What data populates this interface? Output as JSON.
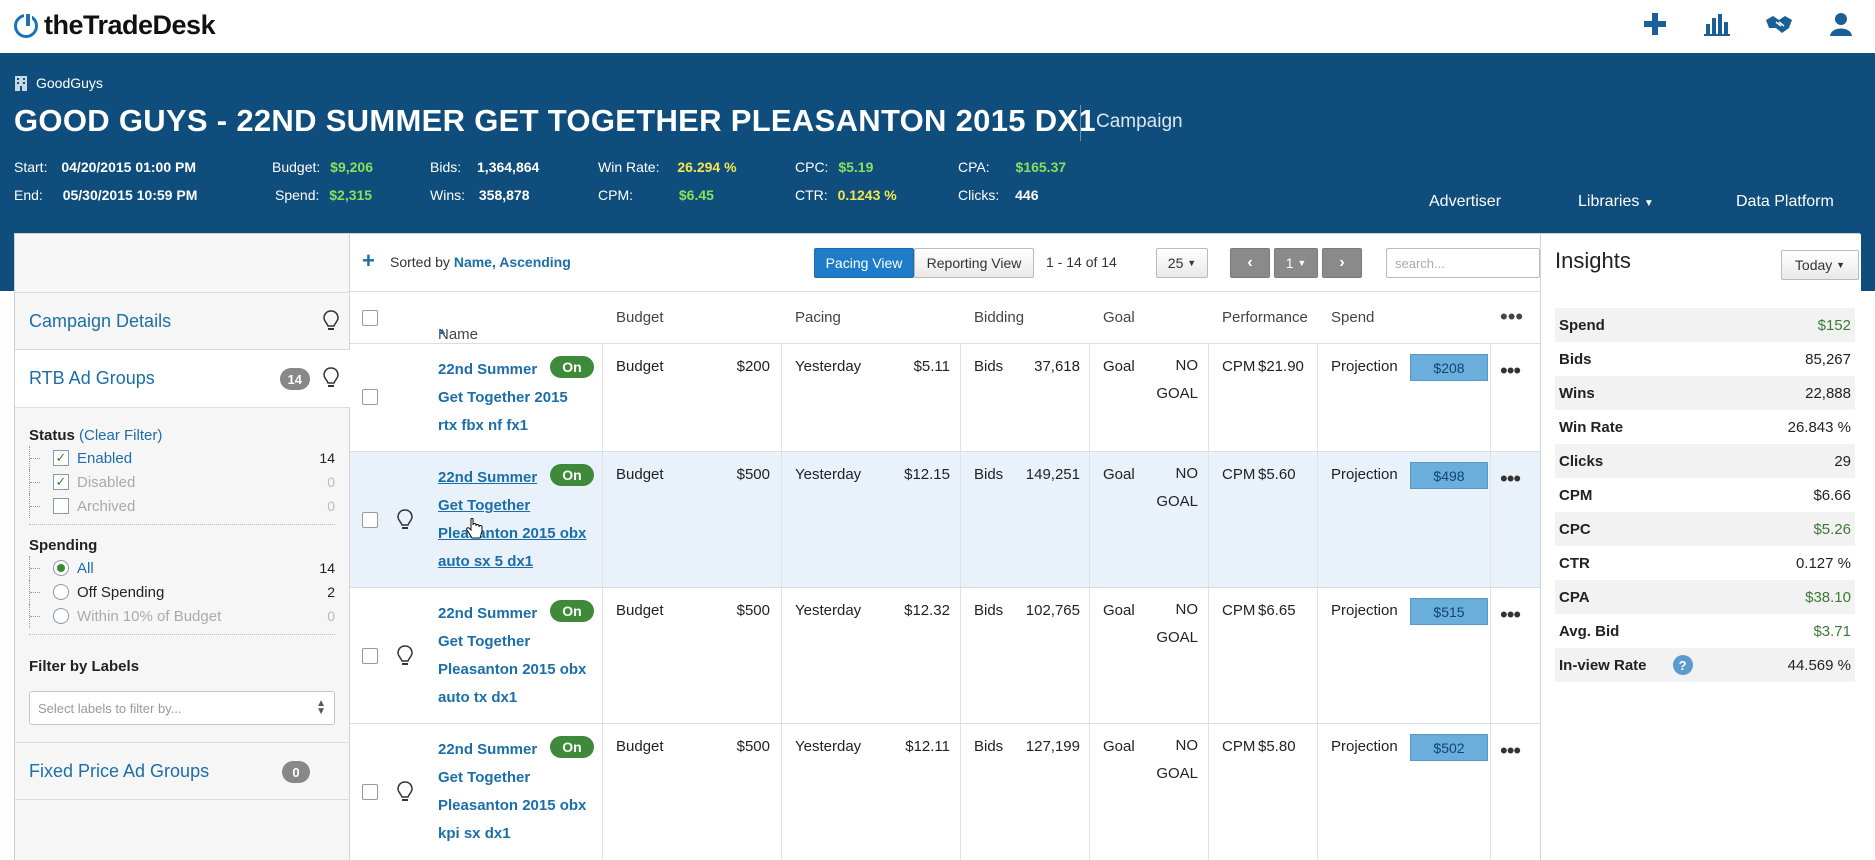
{
  "brand": {
    "logo_text": "theTradeDesk"
  },
  "topnav": {
    "icons": [
      "plus-icon",
      "bar-chart-icon",
      "handshake-icon",
      "user-icon"
    ]
  },
  "header": {
    "advertiser": "GoodGuys",
    "campaign_title": "GOOD GUYS - 22ND SUMMER GET TOGETHER PLEASANTON 2015 DX1",
    "campaign_type": "Campaign",
    "start_label": "Start:",
    "start_value": "04/20/2015 01:00 PM",
    "end_label": "End:",
    "end_value": "05/30/2015 10:59 PM",
    "budget_label": "Budget:",
    "budget_value": "$9,206",
    "spend_label": "Spend:",
    "spend_value": "$2,315",
    "bids_label": "Bids:",
    "bids_value": "1,364,864",
    "wins_label": "Wins:",
    "wins_value": "358,878",
    "winrate_label": "Win Rate:",
    "winrate_value": "26.294 %",
    "cpm_label": "CPM:",
    "cpm_value": "$6.45",
    "cpc_label": "CPC:",
    "cpc_value": "$5.19",
    "ctr_label": "CTR:",
    "ctr_value": "0.1243 %",
    "cpa_label": "CPA:",
    "cpa_value": "$165.37",
    "clicks_label": "Clicks:",
    "clicks_value": "446",
    "nav": [
      "Advertiser",
      "Libraries",
      "Data Platform"
    ]
  },
  "sidebar": {
    "campaign_details": "Campaign Details",
    "rtb_ad_groups": "RTB Ad Groups",
    "rtb_count": "14",
    "status_title": "Status",
    "clear_filter": "(Clear Filter)",
    "status_options": [
      {
        "label": "Enabled",
        "count": "14",
        "checked": true
      },
      {
        "label": "Disabled",
        "count": "0",
        "checked": true
      },
      {
        "label": "Archived",
        "count": "0",
        "checked": false
      }
    ],
    "spending_title": "Spending",
    "spending_options": [
      {
        "label": "All",
        "count": "14",
        "selected": true
      },
      {
        "label": "Off Spending",
        "count": "2",
        "selected": false
      },
      {
        "label": "Within 10% of Budget",
        "count": "0",
        "selected": false
      }
    ],
    "filter_labels_title": "Filter by Labels",
    "filter_labels_placeholder": "Select labels to filter by...",
    "fixed_price": "Fixed Price Ad Groups",
    "fixed_count": "0"
  },
  "toolbar": {
    "sorted_by_label": "Sorted by",
    "sorted_by_value": "Name, Ascending",
    "pacing_view": "Pacing View",
    "reporting_view": "Reporting View",
    "range": "1 - 14 of 14",
    "page_size": "25",
    "page": "1",
    "search_placeholder": "search..."
  },
  "columns": [
    "Name",
    "Budget",
    "Pacing",
    "Bidding",
    "Goal",
    "Performance",
    "Spend"
  ],
  "rows": [
    {
      "name_lines": [
        "22nd Summer",
        "Get Together 2015",
        "rtx fbx nf fx1"
      ],
      "status": "On",
      "budget_label": "Budget",
      "budget": "$200",
      "pacing_label": "Yesterday",
      "pacing": "$5.11",
      "bids_label": "Bids",
      "bids": "37,618",
      "goal_label": "Goal",
      "goal_line1": "NO",
      "goal_line2": "GOAL",
      "perf_label": "CPM",
      "perf": "$21.90",
      "spend_label": "Projection",
      "projection": "$208"
    },
    {
      "name_lines": [
        "22nd Summer",
        "Get Together",
        "Pleasanton 2015 obx",
        "auto sx 5 dx1"
      ],
      "status": "On",
      "budget_label": "Budget",
      "budget": "$500",
      "pacing_label": "Yesterday",
      "pacing": "$12.15",
      "bids_label": "Bids",
      "bids": "149,251",
      "goal_label": "Goal",
      "goal_line1": "NO",
      "goal_line2": "GOAL",
      "perf_label": "CPM",
      "perf": "$5.60",
      "spend_label": "Projection",
      "projection": "$498"
    },
    {
      "name_lines": [
        "22nd Summer",
        "Get Together",
        "Pleasanton 2015 obx",
        "auto tx dx1"
      ],
      "status": "On",
      "budget_label": "Budget",
      "budget": "$500",
      "pacing_label": "Yesterday",
      "pacing": "$12.32",
      "bids_label": "Bids",
      "bids": "102,765",
      "goal_label": "Goal",
      "goal_line1": "NO",
      "goal_line2": "GOAL",
      "perf_label": "CPM",
      "perf": "$6.65",
      "spend_label": "Projection",
      "projection": "$515"
    },
    {
      "name_lines": [
        "22nd Summer",
        "Get Together",
        "Pleasanton 2015 obx",
        "kpi sx dx1"
      ],
      "status": "On",
      "budget_label": "Budget",
      "budget": "$500",
      "pacing_label": "Yesterday",
      "pacing": "$12.11",
      "bids_label": "Bids",
      "bids": "127,199",
      "goal_label": "Goal",
      "goal_line1": "NO",
      "goal_line2": "GOAL",
      "perf_label": "CPM",
      "perf": "$5.80",
      "spend_label": "Projection",
      "projection": "$502"
    }
  ],
  "insights": {
    "title": "Insights",
    "period": "Today",
    "metrics": [
      {
        "label": "Spend",
        "value": "$152"
      },
      {
        "label": "Bids",
        "value": "85,267"
      },
      {
        "label": "Wins",
        "value": "22,888"
      },
      {
        "label": "Win Rate",
        "value": "26.843 %"
      },
      {
        "label": "Clicks",
        "value": "29"
      },
      {
        "label": "CPM",
        "value": "$6.66"
      },
      {
        "label": "CPC",
        "value": "$5.26"
      },
      {
        "label": "CTR",
        "value": "0.127 %"
      },
      {
        "label": "CPA",
        "value": "$38.10"
      },
      {
        "label": "Avg. Bid",
        "value": "$3.71"
      },
      {
        "label": "In-view Rate",
        "value": "44.569 %"
      }
    ]
  },
  "colors": {
    "header_bg": "#0f4d7c",
    "accent_blue": "#1c6ea8",
    "on_green": "#3f8a3a",
    "projection_blue": "#6aaedc"
  }
}
